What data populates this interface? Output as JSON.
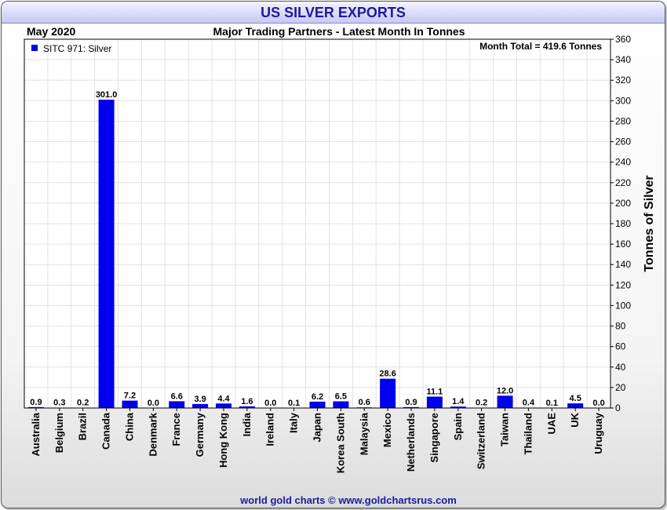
{
  "title": "US SILVER EXPORTS",
  "header": {
    "left": "May 2020",
    "center": "Major Trading Partners - Latest Month In Tonnes"
  },
  "annotation": "Month Total = 419.6 Tonnes",
  "footer": "world gold charts © www.goldchartsrus.com",
  "colors": {
    "bar": "#0000ee",
    "title": "#1a1aa0",
    "footer": "#1a1aa0",
    "grid": "#e2e2e2"
  },
  "chart_data": {
    "type": "bar",
    "title": "US SILVER EXPORTS",
    "subtitle": "Major Trading Partners - Latest Month In Tonnes",
    "ylabel": "Tonnes of Silver",
    "xlabel": "",
    "ylim": [
      0,
      360
    ],
    "yticks": [
      0,
      20,
      40,
      60,
      80,
      100,
      120,
      140,
      160,
      180,
      200,
      220,
      240,
      260,
      280,
      300,
      320,
      340,
      360
    ],
    "y_axis_side": "right",
    "grid": true,
    "legend": {
      "placement": "top-left",
      "entries": [
        "SITC 971: Silver"
      ]
    },
    "categories": [
      "Australia",
      "Belgium",
      "Brazil",
      "Canada",
      "China",
      "Denmark",
      "France",
      "Germany",
      "Hong Kong",
      "India",
      "Ireland",
      "Italy",
      "Japan",
      "Korea South",
      "Malaysia",
      "Mexico",
      "Netherlands",
      "Singapore",
      "Spain",
      "Switzerland",
      "Taiwan",
      "Thailand",
      "UAE",
      "UK",
      "Uruguay"
    ],
    "series": [
      {
        "name": "SITC 971: Silver",
        "values": [
          0.9,
          0.3,
          0.2,
          301.0,
          7.2,
          0.0,
          6.6,
          3.9,
          4.4,
          1.6,
          0.0,
          0.1,
          6.2,
          6.5,
          0.6,
          28.6,
          0.9,
          11.1,
          1.4,
          0.2,
          12.0,
          0.4,
          0.1,
          4.5,
          0.0
        ],
        "labels": [
          "0.9",
          "0.3",
          "0.2",
          "301.0",
          "7.2",
          "0.0",
          "6.6",
          "3.9",
          "4.4",
          "1.6",
          "0.0",
          "0.1",
          "6.2",
          "6.5",
          "0.6",
          "28.6",
          "0.9",
          "11.1",
          "1.4",
          "0.2",
          "12.0",
          "0.4",
          "0.1",
          "4.5",
          "0.0"
        ]
      }
    ]
  }
}
